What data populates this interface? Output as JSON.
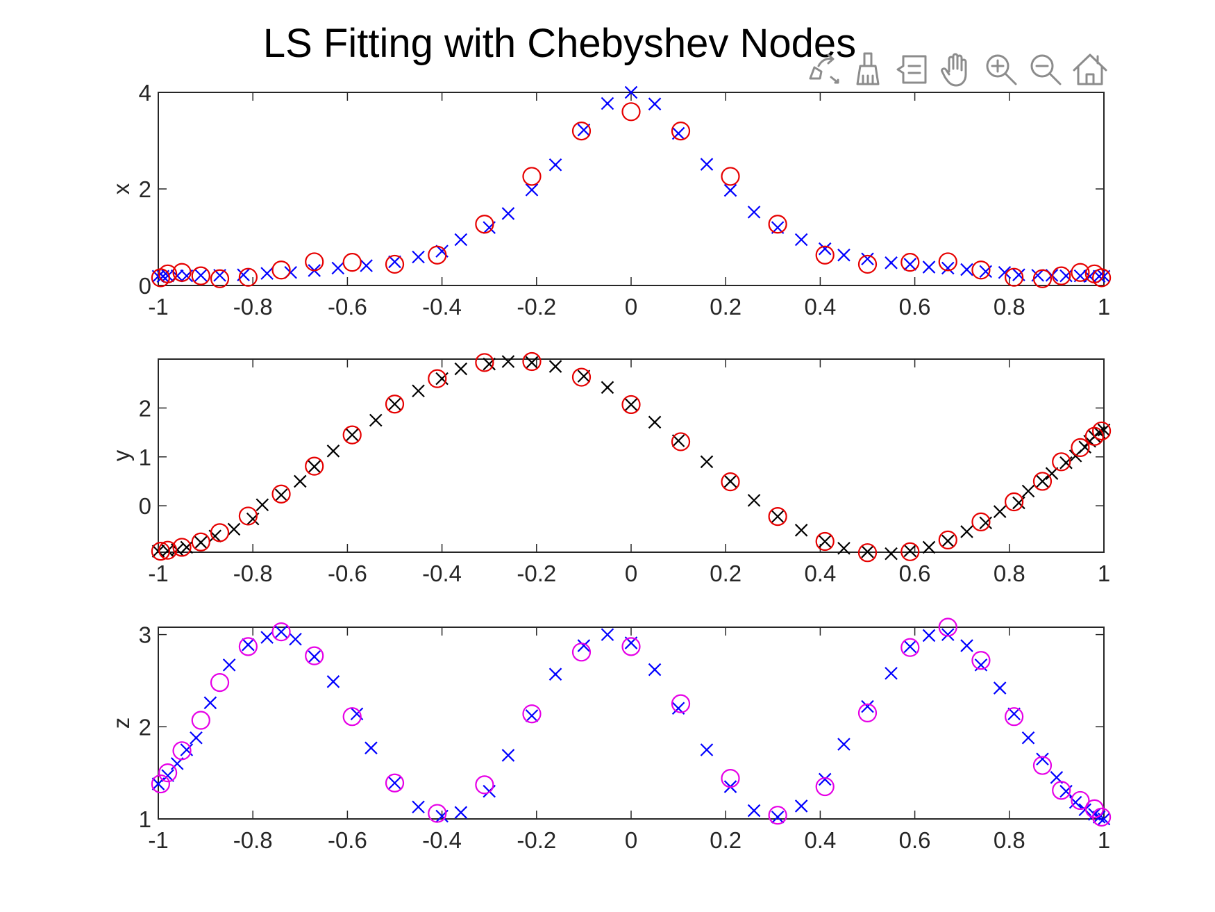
{
  "chart_data": [
    {
      "type": "scatter",
      "title": "LS Fitting with Chebyshev Nodes",
      "xlabel": "",
      "ylabel": "x",
      "xlim": [
        -1,
        1
      ],
      "ylim": [
        0,
        4
      ],
      "x_ticks": [
        -1,
        -0.8,
        -0.6,
        -0.4,
        -0.2,
        0,
        0.2,
        0.4,
        0.6,
        0.8,
        1
      ],
      "x_tick_labels": [
        "-1",
        "-0.8",
        "-0.6",
        "-0.4",
        "-0.2",
        "0",
        "0.2",
        "0.4",
        "0.6",
        "0.8",
        "1"
      ],
      "y_ticks": [
        0,
        2,
        4
      ],
      "y_tick_labels": [
        "0",
        "2",
        "4"
      ],
      "grid": false,
      "series": [
        {
          "marker": "x",
          "color": "#0000ff",
          "points": [
            [
              -1,
              0.19
            ],
            [
              -0.99,
              0.19
            ],
            [
              -0.98,
              0.2
            ],
            [
              -0.96,
              0.2
            ],
            [
              -0.94,
              0.2
            ],
            [
              -0.91,
              0.21
            ],
            [
              -0.87,
              0.21
            ],
            [
              -0.82,
              0.22
            ],
            [
              -0.77,
              0.25
            ],
            [
              -0.72,
              0.27
            ],
            [
              -0.67,
              0.31
            ],
            [
              -0.62,
              0.36
            ],
            [
              -0.56,
              0.41
            ],
            [
              -0.5,
              0.49
            ],
            [
              -0.45,
              0.59
            ],
            [
              -0.4,
              0.71
            ],
            [
              -0.36,
              0.95
            ],
            [
              -0.3,
              1.2
            ],
            [
              -0.26,
              1.49
            ],
            [
              -0.21,
              1.98
            ],
            [
              -0.16,
              2.5
            ],
            [
              -0.1,
              3.22
            ],
            [
              -0.05,
              3.77
            ],
            [
              0,
              4.0
            ],
            [
              0.05,
              3.76
            ],
            [
              0.1,
              3.15
            ],
            [
              0.16,
              2.51
            ],
            [
              0.21,
              1.97
            ],
            [
              0.26,
              1.52
            ],
            [
              0.31,
              1.2
            ],
            [
              0.36,
              0.95
            ],
            [
              0.41,
              0.76
            ],
            [
              0.45,
              0.63
            ],
            [
              0.5,
              0.55
            ],
            [
              0.55,
              0.47
            ],
            [
              0.59,
              0.44
            ],
            [
              0.63,
              0.38
            ],
            [
              0.67,
              0.36
            ],
            [
              0.71,
              0.33
            ],
            [
              0.75,
              0.29
            ],
            [
              0.79,
              0.27
            ],
            [
              0.82,
              0.22
            ],
            [
              0.86,
              0.21
            ],
            [
              0.89,
              0.21
            ],
            [
              0.92,
              0.2
            ],
            [
              0.95,
              0.2
            ],
            [
              0.97,
              0.19
            ],
            [
              0.99,
              0.19
            ],
            [
              1,
              0.19
            ]
          ]
        },
        {
          "marker": "o",
          "color": "#e60000",
          "points": [
            [
              -0.995,
              0.16
            ],
            [
              -0.98,
              0.24
            ],
            [
              -0.95,
              0.27
            ],
            [
              -0.91,
              0.2
            ],
            [
              -0.87,
              0.14
            ],
            [
              -0.81,
              0.17
            ],
            [
              -0.74,
              0.32
            ],
            [
              -0.67,
              0.49
            ],
            [
              -0.59,
              0.48
            ],
            [
              -0.5,
              0.44
            ],
            [
              -0.41,
              0.63
            ],
            [
              -0.31,
              1.27
            ],
            [
              -0.21,
              2.26
            ],
            [
              -0.105,
              3.2
            ],
            [
              0,
              3.6
            ],
            [
              0.105,
              3.2
            ],
            [
              0.21,
              2.26
            ],
            [
              0.31,
              1.27
            ],
            [
              0.41,
              0.63
            ],
            [
              0.5,
              0.44
            ],
            [
              0.59,
              0.48
            ],
            [
              0.67,
              0.49
            ],
            [
              0.74,
              0.32
            ],
            [
              0.81,
              0.17
            ],
            [
              0.87,
              0.14
            ],
            [
              0.91,
              0.2
            ],
            [
              0.95,
              0.27
            ],
            [
              0.98,
              0.24
            ],
            [
              0.995,
              0.16
            ]
          ]
        }
      ]
    },
    {
      "type": "scatter",
      "title": "",
      "xlabel": "",
      "ylabel": "y",
      "xlim": [
        -1,
        1
      ],
      "ylim": [
        -0.95,
        3
      ],
      "x_ticks": [
        -1,
        -0.8,
        -0.6,
        -0.4,
        -0.2,
        0,
        0.2,
        0.4,
        0.6,
        0.8,
        1
      ],
      "x_tick_labels": [
        "-1",
        "-0.8",
        "-0.6",
        "-0.4",
        "-0.2",
        "0",
        "0.2",
        "0.4",
        "0.6",
        "0.8",
        "1"
      ],
      "y_ticks": [
        0,
        1,
        2
      ],
      "y_tick_labels": [
        "0",
        "1",
        "2"
      ],
      "grid": false,
      "series": [
        {
          "marker": "x",
          "color": "#000000",
          "points": [
            [
              -1,
              -0.93
            ],
            [
              -0.98,
              -0.92
            ],
            [
              -0.96,
              -0.9
            ],
            [
              -0.94,
              -0.85
            ],
            [
              -0.91,
              -0.75
            ],
            [
              -0.88,
              -0.62
            ],
            [
              -0.84,
              -0.48
            ],
            [
              -0.8,
              -0.27
            ],
            [
              -0.78,
              0.02
            ],
            [
              -0.74,
              0.22
            ],
            [
              -0.7,
              0.5
            ],
            [
              -0.67,
              0.8
            ],
            [
              -0.63,
              1.12
            ],
            [
              -0.59,
              1.45
            ],
            [
              -0.54,
              1.75
            ],
            [
              -0.5,
              2.08
            ],
            [
              -0.45,
              2.35
            ],
            [
              -0.4,
              2.6
            ],
            [
              -0.36,
              2.8
            ],
            [
              -0.3,
              2.9
            ],
            [
              -0.26,
              2.95
            ],
            [
              -0.21,
              2.93
            ],
            [
              -0.16,
              2.85
            ],
            [
              -0.1,
              2.65
            ],
            [
              -0.05,
              2.42
            ],
            [
              0,
              2.07
            ],
            [
              0.05,
              1.71
            ],
            [
              0.1,
              1.33
            ],
            [
              0.16,
              0.9
            ],
            [
              0.21,
              0.5
            ],
            [
              0.26,
              0.11
            ],
            [
              0.31,
              -0.22
            ],
            [
              0.36,
              -0.5
            ],
            [
              0.41,
              -0.73
            ],
            [
              0.45,
              -0.87
            ],
            [
              0.5,
              -0.94
            ],
            [
              0.55,
              -0.98
            ],
            [
              0.59,
              -0.92
            ],
            [
              0.63,
              -0.85
            ],
            [
              0.67,
              -0.72
            ],
            [
              0.71,
              -0.53
            ],
            [
              0.75,
              -0.35
            ],
            [
              0.78,
              -0.12
            ],
            [
              0.82,
              0.06
            ],
            [
              0.84,
              0.3
            ],
            [
              0.87,
              0.5
            ],
            [
              0.89,
              0.66
            ],
            [
              0.92,
              0.88
            ],
            [
              0.94,
              1.02
            ],
            [
              0.96,
              1.2
            ],
            [
              0.97,
              1.32
            ],
            [
              0.98,
              1.42
            ],
            [
              0.99,
              1.5
            ],
            [
              1,
              1.55
            ]
          ]
        },
        {
          "marker": "o",
          "color": "#e60000",
          "points": [
            [
              -0.995,
              -0.93
            ],
            [
              -0.98,
              -0.91
            ],
            [
              -0.95,
              -0.85
            ],
            [
              -0.91,
              -0.74
            ],
            [
              -0.87,
              -0.55
            ],
            [
              -0.81,
              -0.21
            ],
            [
              -0.74,
              0.24
            ],
            [
              -0.67,
              0.81
            ],
            [
              -0.59,
              1.45
            ],
            [
              -0.5,
              2.08
            ],
            [
              -0.41,
              2.6
            ],
            [
              -0.31,
              2.93
            ],
            [
              -0.21,
              2.95
            ],
            [
              -0.105,
              2.63
            ],
            [
              0,
              2.07
            ],
            [
              0.105,
              1.31
            ],
            [
              0.21,
              0.49
            ],
            [
              0.31,
              -0.22
            ],
            [
              0.41,
              -0.73
            ],
            [
              0.5,
              -0.96
            ],
            [
              0.59,
              -0.94
            ],
            [
              0.67,
              -0.7
            ],
            [
              0.74,
              -0.33
            ],
            [
              0.81,
              0.08
            ],
            [
              0.87,
              0.5
            ],
            [
              0.91,
              0.9
            ],
            [
              0.95,
              1.19
            ],
            [
              0.98,
              1.42
            ],
            [
              0.995,
              1.53
            ]
          ]
        }
      ]
    },
    {
      "type": "scatter",
      "title": "",
      "xlabel": "",
      "ylabel": "z",
      "xlim": [
        -1,
        1
      ],
      "ylim": [
        1,
        3.08
      ],
      "x_ticks": [
        -1,
        -0.8,
        -0.6,
        -0.4,
        -0.2,
        0,
        0.2,
        0.4,
        0.6,
        0.8,
        1
      ],
      "x_tick_labels": [
        "-1",
        "-0.8",
        "-0.6",
        "-0.4",
        "-0.2",
        "0",
        "0.2",
        "0.4",
        "0.6",
        "0.8",
        "1"
      ],
      "y_ticks": [
        1,
        2,
        3
      ],
      "y_tick_labels": [
        "1",
        "2",
        "3"
      ],
      "grid": false,
      "series": [
        {
          "marker": "x",
          "color": "#0000ff",
          "points": [
            [
              -1,
              1.38
            ],
            [
              -0.98,
              1.47
            ],
            [
              -0.96,
              1.6
            ],
            [
              -0.94,
              1.75
            ],
            [
              -0.92,
              1.88
            ],
            [
              -0.89,
              2.26
            ],
            [
              -0.85,
              2.67
            ],
            [
              -0.81,
              2.89
            ],
            [
              -0.77,
              2.97
            ],
            [
              -0.74,
              3.03
            ],
            [
              -0.71,
              2.95
            ],
            [
              -0.67,
              2.76
            ],
            [
              -0.63,
              2.49
            ],
            [
              -0.58,
              2.14
            ],
            [
              -0.55,
              1.77
            ],
            [
              -0.5,
              1.39
            ],
            [
              -0.45,
              1.13
            ],
            [
              -0.4,
              1.03
            ],
            [
              -0.36,
              1.07
            ],
            [
              -0.3,
              1.3
            ],
            [
              -0.26,
              1.69
            ],
            [
              -0.21,
              2.12
            ],
            [
              -0.16,
              2.57
            ],
            [
              -0.1,
              2.88
            ],
            [
              -0.05,
              3.0
            ],
            [
              0,
              2.91
            ],
            [
              0.05,
              2.62
            ],
            [
              0.1,
              2.2
            ],
            [
              0.16,
              1.75
            ],
            [
              0.21,
              1.35
            ],
            [
              0.26,
              1.09
            ],
            [
              0.31,
              1.02
            ],
            [
              0.36,
              1.14
            ],
            [
              0.41,
              1.43
            ],
            [
              0.45,
              1.81
            ],
            [
              0.5,
              2.22
            ],
            [
              0.55,
              2.58
            ],
            [
              0.59,
              2.87
            ],
            [
              0.63,
              2.99
            ],
            [
              0.67,
              3.0
            ],
            [
              0.71,
              2.88
            ],
            [
              0.74,
              2.67
            ],
            [
              0.78,
              2.42
            ],
            [
              0.81,
              2.14
            ],
            [
              0.84,
              1.88
            ],
            [
              0.87,
              1.65
            ],
            [
              0.9,
              1.45
            ],
            [
              0.92,
              1.3
            ],
            [
              0.94,
              1.18
            ],
            [
              0.96,
              1.1
            ],
            [
              0.98,
              1.05
            ],
            [
              0.99,
              1.02
            ],
            [
              1,
              1.0
            ]
          ]
        },
        {
          "marker": "o",
          "color": "#e600e6",
          "points": [
            [
              -0.995,
              1.38
            ],
            [
              -0.98,
              1.5
            ],
            [
              -0.95,
              1.74
            ],
            [
              -0.91,
              2.07
            ],
            [
              -0.87,
              2.48
            ],
            [
              -0.81,
              2.87
            ],
            [
              -0.74,
              3.03
            ],
            [
              -0.67,
              2.77
            ],
            [
              -0.59,
              2.11
            ],
            [
              -0.5,
              1.39
            ],
            [
              -0.41,
              1.06
            ],
            [
              -0.31,
              1.37
            ],
            [
              -0.21,
              2.14
            ],
            [
              -0.105,
              2.81
            ],
            [
              0,
              2.87
            ],
            [
              0.105,
              2.25
            ],
            [
              0.21,
              1.44
            ],
            [
              0.31,
              1.04
            ],
            [
              0.41,
              1.35
            ],
            [
              0.5,
              2.15
            ],
            [
              0.59,
              2.86
            ],
            [
              0.67,
              3.08
            ],
            [
              0.74,
              2.72
            ],
            [
              0.81,
              2.11
            ],
            [
              0.87,
              1.58
            ],
            [
              0.91,
              1.31
            ],
            [
              0.95,
              1.2
            ],
            [
              0.98,
              1.11
            ],
            [
              0.995,
              1.02
            ]
          ]
        }
      ]
    }
  ],
  "toolbar": {
    "icons": [
      "export-icon",
      "brush-icon",
      "datatip-icon",
      "pan-icon",
      "zoom-in-icon",
      "zoom-out-icon",
      "home-icon"
    ]
  }
}
